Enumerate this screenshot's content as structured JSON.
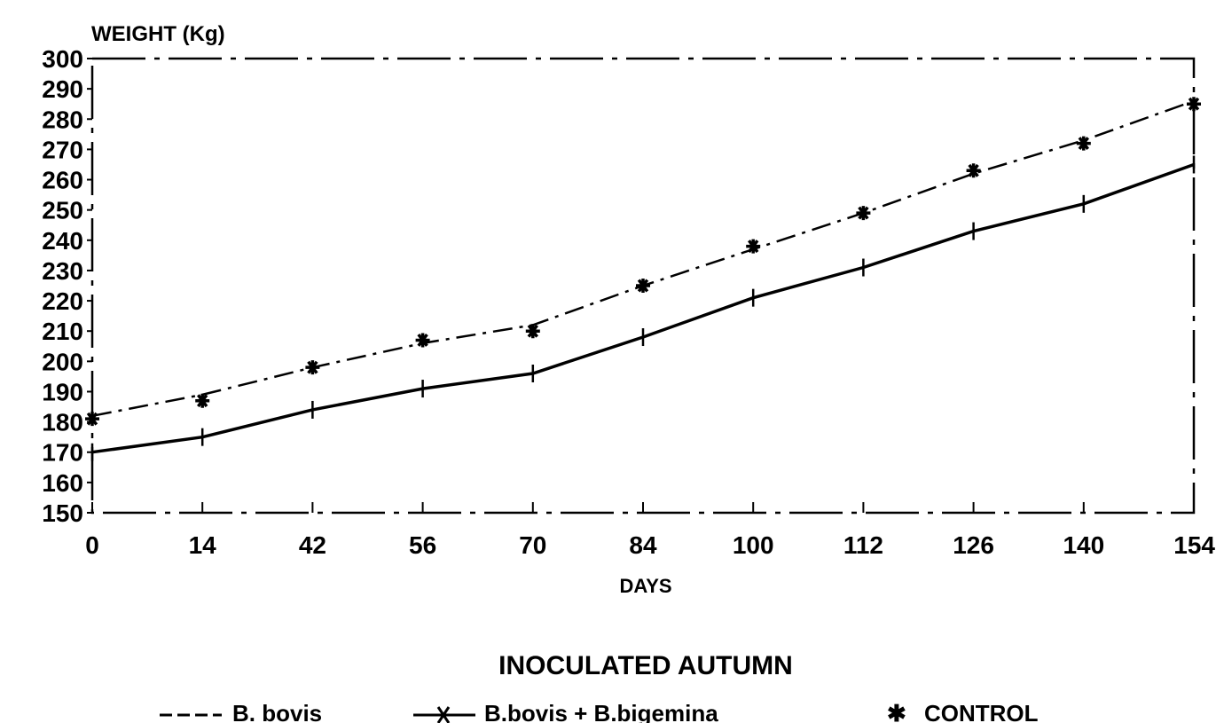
{
  "chart_data": {
    "type": "line",
    "title": "INOCULATED AUTUMN",
    "ylabel": "WEIGHT (Kg)",
    "xlabel": "DAYS",
    "categories": [
      "0",
      "14",
      "42",
      "56",
      "70",
      "84",
      "100",
      "112",
      "126",
      "140",
      "154"
    ],
    "yticks": [
      300,
      290,
      280,
      270,
      260,
      250,
      240,
      230,
      220,
      210,
      200,
      190,
      180,
      170,
      160,
      150
    ],
    "ylim": [
      150,
      300
    ],
    "grid": false,
    "legend_position": "bottom",
    "series": [
      {
        "name": "B. bovis",
        "style": "dashed",
        "values": [
          182,
          189,
          198,
          206,
          212,
          225,
          237,
          249,
          262,
          273,
          286
        ]
      },
      {
        "name": "B.bovis + B.bigemina",
        "style": "solid-cross",
        "values": [
          170,
          175,
          184,
          191,
          196,
          208,
          221,
          231,
          243,
          252,
          265
        ]
      },
      {
        "name": "CONTROL",
        "style": "star",
        "values": [
          181,
          187,
          198,
          207,
          210,
          225,
          238,
          249,
          263,
          272,
          285
        ]
      }
    ],
    "colors": {
      "ink": "#000000",
      "background": "#ffffff"
    }
  }
}
